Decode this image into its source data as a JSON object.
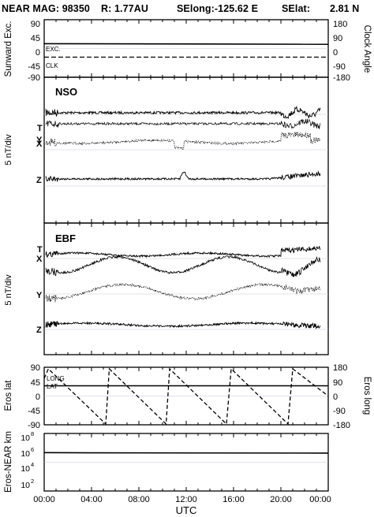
{
  "header": {
    "mission": "NEAR MAG: 98350",
    "radius": "R: 1.77AU",
    "selong": "SElong:-125.62 E",
    "selat_label": "SElat:",
    "selat_value": "2.81 N"
  },
  "chart_data": [
    {
      "type": "line",
      "panel": "sunward-excursion-clock-angle",
      "ylabel": "Sunward Exc.",
      "ylabel_right": "Clock Angle",
      "ylim": [
        -90,
        90
      ],
      "ylim_right": [
        -180,
        180
      ],
      "yticks": [
        "90",
        "45",
        "0",
        "-45",
        "-90"
      ],
      "yticks_right": [
        "180",
        "90",
        "0",
        "-90",
        "-180"
      ],
      "annotations": [
        "EXC.",
        "CLK"
      ],
      "series": [
        {
          "name": "EXC.",
          "style": "solid",
          "x": [
            0,
            24
          ],
          "values": [
            15,
            13
          ]
        },
        {
          "name": "CLK",
          "style": "dashed",
          "x": [
            0,
            24
          ],
          "values": [
            -27,
            -27
          ]
        }
      ]
    },
    {
      "type": "line",
      "panel": "NSO",
      "title": "NSO",
      "ylabel": "5 nT/div",
      "traces": [
        "T",
        "X",
        "Y",
        "Z"
      ]
    },
    {
      "type": "line",
      "panel": "EBF",
      "title": "EBF",
      "ylabel": "5 nT/div",
      "traces": [
        "T",
        "X",
        "Y",
        "Z"
      ]
    },
    {
      "type": "line",
      "panel": "eros-lat-long",
      "ylabel": "Eros lat",
      "ylabel_right": "Eros long",
      "ylim": [
        -90,
        90
      ],
      "ylim_right": [
        -180,
        180
      ],
      "yticks": [
        "90",
        "45",
        "0",
        "-45",
        "-90"
      ],
      "yticks_right": [
        "180",
        "90",
        "0",
        "-90",
        "-180"
      ],
      "annotations": [
        "LONG",
        "LAT"
      ],
      "series": [
        {
          "name": "LAT",
          "style": "solid",
          "x": [
            0,
            24
          ],
          "values": [
            32,
            32
          ]
        },
        {
          "name": "LONG",
          "style": "dashed",
          "x": [
            0,
            0.35,
            0.35,
            5.2,
            5.5,
            10.3,
            10.6,
            15.4,
            15.8,
            20.6,
            21.0,
            24
          ],
          "values": [
            110,
            170,
            170,
            -175,
            170,
            -175,
            170,
            -175,
            170,
            -175,
            170,
            0
          ]
        }
      ]
    },
    {
      "type": "line",
      "panel": "eros-near-distance",
      "ylabel": "Eros-NEAR km",
      "yscale": "log",
      "ylim": [
        100,
        100000000
      ],
      "yticks": [
        "10",
        "10",
        "10",
        "10"
      ],
      "ytick_exponents": [
        "8",
        "6",
        "4",
        "2"
      ],
      "series": [
        {
          "name": "",
          "style": "solid",
          "x": [
            0,
            4,
            24
          ],
          "values": [
            1000000,
            950000,
            900000
          ]
        }
      ],
      "x_ticks": [
        "00:00",
        "04:00",
        "08:00",
        "12:00",
        "16:00",
        "20:00",
        "00:00"
      ],
      "xlabel": "UTC"
    }
  ]
}
